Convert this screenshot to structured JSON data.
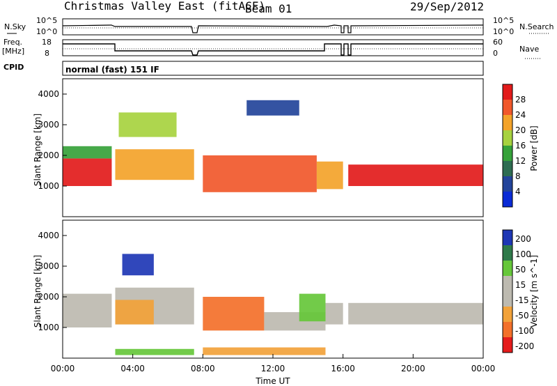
{
  "header": {
    "title": "Christmas Valley East (fitACF)",
    "beam": "Beam 01",
    "date": "29/Sep/2012"
  },
  "strip_panels": {
    "nsky": {
      "label": "N.Sky",
      "ticks": [
        "10^5",
        "10^0"
      ]
    },
    "nsearch": {
      "label": "N.Search",
      "ticks": [
        "10^5",
        "10^0"
      ]
    },
    "freq": {
      "label_line1": "Freq.",
      "label_line2": "[MHz]",
      "ticks": [
        "18",
        "8"
      ]
    },
    "nave": {
      "label": "Nave",
      "ticks": [
        "60",
        "0"
      ]
    },
    "cpid": {
      "label": "CPID",
      "value": "normal (fast) 151 IF"
    }
  },
  "colors": {
    "power": [
      "#0a2bd6",
      "#23449a",
      "#2e6d52",
      "#36a23a",
      "#a7d23f",
      "#f3a32a",
      "#f1582b",
      "#e21b1b"
    ],
    "velocity": [
      "#e51c1c",
      "#f3702a",
      "#f2a23a",
      "#bdbab0",
      "#bdbab0",
      "#66c73a",
      "#2f7a4a",
      "#1e37b5"
    ]
  },
  "chart_data": [
    {
      "type": "heatmap",
      "name": "power",
      "ylabel": "Slant Range [km]",
      "xlabel": "",
      "xlim": [
        0,
        24
      ],
      "ylim": [
        0,
        4500
      ],
      "yticks": [
        "4000",
        "3000",
        "2000",
        "1000"
      ],
      "ytick_values": [
        4000,
        3000,
        2000,
        1000
      ],
      "colorbar": {
        "label": "Power [dB]",
        "ticks": [
          "28",
          "24",
          "20",
          "16",
          "12",
          "8",
          "4"
        ]
      },
      "bands": [
        {
          "x_start": 0.0,
          "x_end": 2.8,
          "range_low": 1000,
          "range_high": 1900,
          "level": 7
        },
        {
          "x_start": 0.0,
          "x_end": 2.8,
          "range_low": 1900,
          "range_high": 2300,
          "level": 3
        },
        {
          "x_start": 3.0,
          "x_end": 7.5,
          "range_low": 1200,
          "range_high": 2200,
          "level": 5
        },
        {
          "x_start": 3.2,
          "x_end": 6.5,
          "range_low": 2600,
          "range_high": 3400,
          "level": 4
        },
        {
          "x_start": 8.0,
          "x_end": 14.5,
          "range_low": 800,
          "range_high": 2000,
          "level": 6
        },
        {
          "x_start": 14.5,
          "x_end": 16.0,
          "range_low": 900,
          "range_high": 1800,
          "level": 5
        },
        {
          "x_start": 16.3,
          "x_end": 24.0,
          "range_low": 1000,
          "range_high": 1700,
          "level": 7
        },
        {
          "x_start": 10.5,
          "x_end": 13.5,
          "range_low": 3300,
          "range_high": 3800,
          "level": 1
        }
      ]
    },
    {
      "type": "heatmap",
      "name": "velocity",
      "ylabel": "Slant Range [km]",
      "xlabel": "Time UT",
      "xlim": [
        0,
        24
      ],
      "ylim": [
        0,
        4500
      ],
      "yticks": [
        "4000",
        "3000",
        "2000",
        "1000"
      ],
      "ytick_values": [
        4000,
        3000,
        2000,
        1000
      ],
      "xticks": [
        "00:00",
        "04:00",
        "08:00",
        "12:00",
        "16:00",
        "20:00",
        "00:00"
      ],
      "xtick_values": [
        0,
        4,
        8,
        12,
        16,
        20,
        24
      ],
      "colorbar": {
        "label": "Velocity [m s^-1]",
        "ticks": [
          "200",
          "100",
          "50",
          "15",
          "-15",
          "-50",
          "-100",
          "-200"
        ]
      },
      "bands": [
        {
          "x_start": 0.0,
          "x_end": 2.8,
          "range_low": 1000,
          "range_high": 2100,
          "level": 4
        },
        {
          "x_start": 3.0,
          "x_end": 7.5,
          "range_low": 1100,
          "range_high": 2300,
          "level": 4
        },
        {
          "x_start": 3.0,
          "x_end": 5.2,
          "range_low": 1100,
          "range_high": 1900,
          "level": 2
        },
        {
          "x_start": 3.4,
          "x_end": 5.2,
          "range_low": 2700,
          "range_high": 3400,
          "level": 7
        },
        {
          "x_start": 8.0,
          "x_end": 11.5,
          "range_low": 900,
          "range_high": 2000,
          "level": 1
        },
        {
          "x_start": 11.5,
          "x_end": 15.0,
          "range_low": 900,
          "range_high": 1500,
          "level": 4
        },
        {
          "x_start": 13.5,
          "x_end": 15.0,
          "range_low": 1200,
          "range_high": 2100,
          "level": 5
        },
        {
          "x_start": 15.0,
          "x_end": 16.0,
          "range_low": 1100,
          "range_high": 1800,
          "level": 4
        },
        {
          "x_start": 16.3,
          "x_end": 24.0,
          "range_low": 1100,
          "range_high": 1800,
          "level": 4
        },
        {
          "x_start": 8.0,
          "x_end": 15.0,
          "range_low": 100,
          "range_high": 350,
          "level": 2
        },
        {
          "x_start": 3.0,
          "x_end": 7.5,
          "range_low": 100,
          "range_high": 300,
          "level": 5
        }
      ]
    }
  ]
}
